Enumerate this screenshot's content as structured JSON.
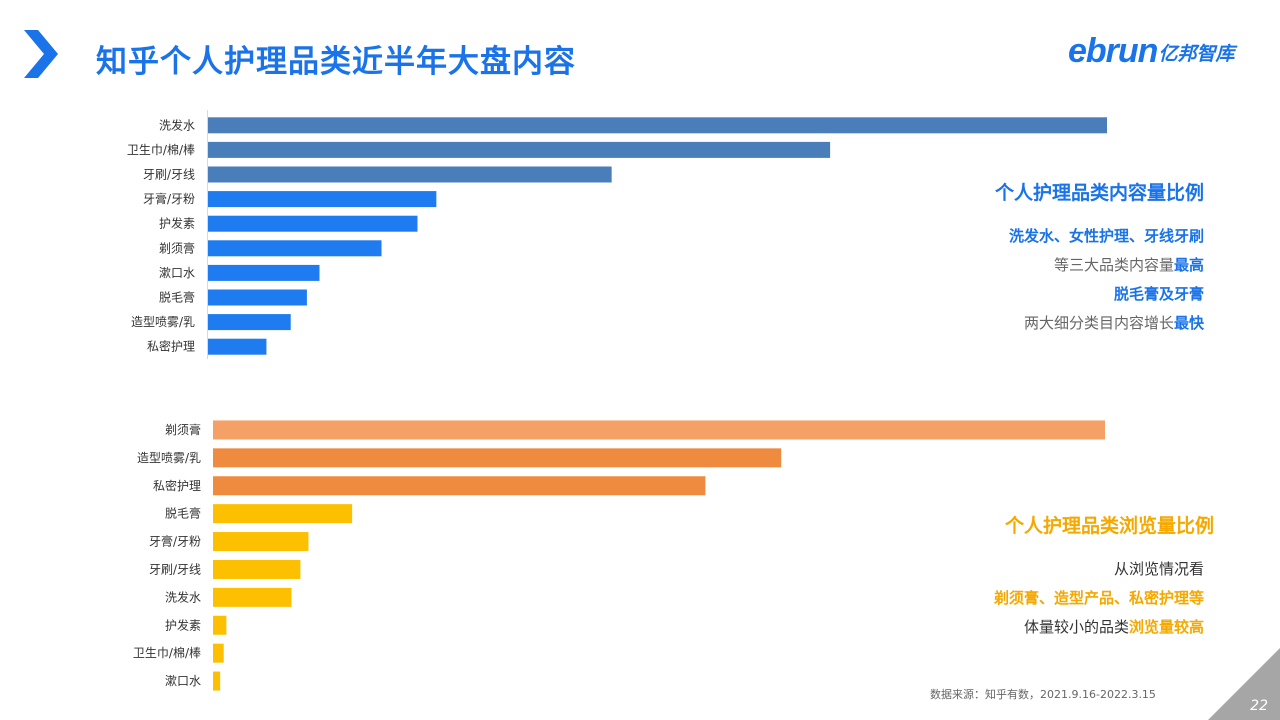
{
  "header": {
    "title": "知乎个人护理品类近半年大盘内容",
    "logo_en": "ebrun",
    "logo_cn": "亿邦智库"
  },
  "colors": {
    "accent": "#1a73e8",
    "content_bars": [
      "#4a7ebb",
      "#1e7bf0"
    ],
    "views_bars": [
      "#f4a067",
      "#ef8b3e",
      "#fcc000"
    ]
  },
  "chart_data": [
    {
      "type": "bar",
      "orientation": "horizontal",
      "categories": [
        "洗发水",
        "卫生巾/棉/棒",
        "牙刷/牙线",
        "牙膏/牙粉",
        "护发素",
        "剃须膏",
        "漱口水",
        "脱毛膏",
        "造型喷雾/乳",
        "私密护理"
      ],
      "values": [
        100,
        69.2,
        44.9,
        25.4,
        23.3,
        19.3,
        12.4,
        11.0,
        9.2,
        6.5
      ],
      "bar_colors": [
        "#4a7ebb",
        "#4a7ebb",
        "#4a7ebb",
        "#1e7bf0",
        "#1e7bf0",
        "#1e7bf0",
        "#1e7bf0",
        "#1e7bf0",
        "#1e7bf0",
        "#1e7bf0"
      ],
      "xlim": [
        0,
        100
      ],
      "axis_labels": false
    },
    {
      "type": "bar",
      "orientation": "horizontal",
      "categories": [
        "剃须膏",
        "造型喷雾/乳",
        "私密护理",
        "脱毛膏",
        "牙膏/牙粉",
        "牙刷/牙线",
        "洗发水",
        "护发素",
        "卫生巾/棉/棒",
        "漱口水"
      ],
      "values": [
        100,
        63.7,
        55.2,
        15.6,
        10.7,
        9.8,
        8.8,
        1.5,
        1.2,
        0.8
      ],
      "bar_colors": [
        "#f4a067",
        "#ef8b3e",
        "#ef8b3e",
        "#fcc000",
        "#fcc000",
        "#fcc000",
        "#fcc000",
        "#fcc000",
        "#fcc000",
        "#fcc000"
      ],
      "xlim": [
        0,
        100
      ],
      "axis_labels": false
    }
  ],
  "panel_content": {
    "title": "个人护理品类内容量比例",
    "line1": "洗发水、女性护理、牙线牙刷",
    "line2_normal": "等三大品类内容量",
    "line2_bold": "最高",
    "line3": "脱毛膏及牙膏",
    "line4_normal": "两大细分类目内容增长",
    "line4_bold": "最快"
  },
  "panel_views": {
    "title": "个人护理品类浏览量比例",
    "line1": "从浏览情况看",
    "line2": "剃须膏、造型产品、私密护理等",
    "line3_normal": "体量较小的品类",
    "line3_bold": "浏览量较高"
  },
  "footer": {
    "source": "数据来源：知乎有数，2021.9.16-2022.3.15",
    "page_number": "22"
  }
}
